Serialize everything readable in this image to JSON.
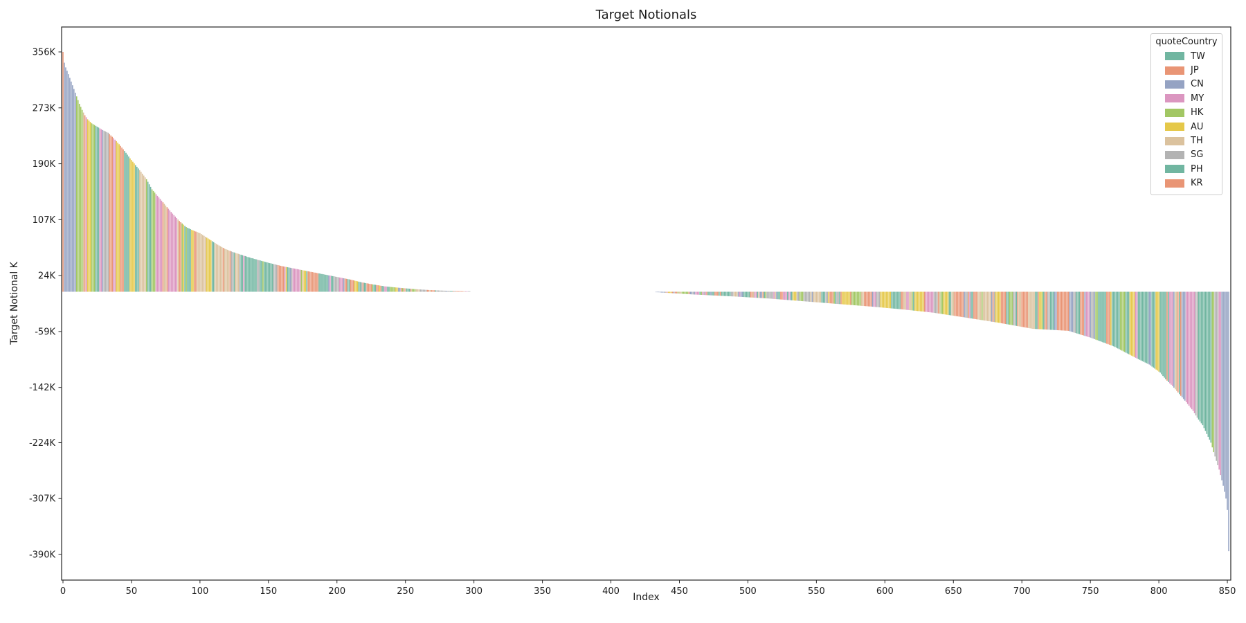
{
  "chart_data": {
    "type": "bar",
    "title": "Target Notionals",
    "xlabel": "Index",
    "ylabel": "Target Notional K",
    "units": "K (thousands)",
    "sorted": "descending by value",
    "n_bars": 852,
    "xlim": [
      -1,
      852.5
    ],
    "ylim": [
      -428,
      393
    ],
    "x_ticks": [
      0,
      50,
      100,
      150,
      200,
      250,
      300,
      350,
      400,
      450,
      500,
      550,
      600,
      650,
      700,
      750,
      800,
      850
    ],
    "y_ticks": [
      {
        "label": "356K",
        "value": 356
      },
      {
        "label": "273K",
        "value": 273
      },
      {
        "label": "190K",
        "value": 190
      },
      {
        "label": "107K",
        "value": 107
      },
      {
        "label": "24K",
        "value": 24
      },
      {
        "label": "-59K",
        "value": -59
      },
      {
        "label": "-142K",
        "value": -142
      },
      {
        "label": "-224K",
        "value": -224
      },
      {
        "label": "-307K",
        "value": -307
      },
      {
        "label": "-390K",
        "value": -390
      }
    ],
    "legend": {
      "title": "quoteCountry",
      "position": "upper right",
      "entries": [
        {
          "label": "TW",
          "color": "#71b6a1"
        },
        {
          "label": "JP",
          "color": "#e99575"
        },
        {
          "label": "CN",
          "color": "#95a3c3"
        },
        {
          "label": "MY",
          "color": "#db96c0"
        },
        {
          "label": "HK",
          "color": "#a2c764"
        },
        {
          "label": "AU",
          "color": "#e5c849"
        },
        {
          "label": "TH",
          "color": "#dbc29e"
        },
        {
          "label": "SG",
          "color": "#b3b3b3"
        },
        {
          "label": "PH",
          "color": "#71b6a1"
        },
        {
          "label": "KR",
          "color": "#e99575"
        }
      ]
    },
    "palette": {
      "TW": "#71b6a1",
      "JP": "#e99575",
      "CN": "#95a3c3",
      "MY": "#db96c0",
      "HK": "#a2c764",
      "AU": "#e5c849",
      "TH": "#dbc29e",
      "SG": "#b3b3b3",
      "PH": "#71b6a1",
      "KR": "#e99575"
    },
    "zero_gap": [
      298,
      432
    ],
    "envelope": [
      [
        0,
        356
      ],
      [
        1,
        340
      ],
      [
        2,
        333
      ],
      [
        4,
        323
      ],
      [
        6,
        312
      ],
      [
        8,
        301
      ],
      [
        10,
        290
      ],
      [
        12,
        279
      ],
      [
        14,
        270
      ],
      [
        16,
        262
      ],
      [
        18,
        256
      ],
      [
        21,
        250
      ],
      [
        25,
        245
      ],
      [
        29,
        240
      ],
      [
        33,
        236
      ],
      [
        37,
        228
      ],
      [
        41,
        219
      ],
      [
        45,
        209
      ],
      [
        49,
        198
      ],
      [
        53,
        188
      ],
      [
        57,
        178
      ],
      [
        61,
        167
      ],
      [
        65,
        152
      ],
      [
        70,
        140
      ],
      [
        75,
        128
      ],
      [
        80,
        116
      ],
      [
        85,
        105
      ],
      [
        90,
        96
      ],
      [
        95,
        91
      ],
      [
        100,
        87
      ],
      [
        106,
        79
      ],
      [
        112,
        71
      ],
      [
        118,
        64
      ],
      [
        124,
        59
      ],
      [
        130,
        55
      ],
      [
        136,
        51
      ],
      [
        143,
        47
      ],
      [
        150,
        43
      ],
      [
        160,
        38
      ],
      [
        170,
        34
      ],
      [
        180,
        30
      ],
      [
        190,
        26
      ],
      [
        200,
        22
      ],
      [
        210,
        18
      ],
      [
        218,
        14
      ],
      [
        226,
        11
      ],
      [
        235,
        8
      ],
      [
        245,
        6
      ],
      [
        256,
        4
      ],
      [
        268,
        2.5
      ],
      [
        282,
        1.3
      ],
      [
        296,
        0.6
      ],
      [
        298,
        0
      ],
      [
        432,
        0
      ],
      [
        436,
        -1
      ],
      [
        460,
        -4
      ],
      [
        490,
        -7
      ],
      [
        515,
        -10
      ],
      [
        540,
        -14
      ],
      [
        565,
        -18
      ],
      [
        590,
        -22
      ],
      [
        612,
        -26
      ],
      [
        635,
        -31
      ],
      [
        658,
        -38
      ],
      [
        683,
        -46
      ],
      [
        708,
        -55
      ],
      [
        734,
        -58
      ],
      [
        750,
        -68
      ],
      [
        767,
        -81
      ],
      [
        784,
        -99
      ],
      [
        793,
        -108
      ],
      [
        801,
        -120
      ],
      [
        805,
        -130
      ],
      [
        810,
        -140
      ],
      [
        815,
        -152
      ],
      [
        820,
        -164
      ],
      [
        825,
        -177
      ],
      [
        828,
        -187
      ],
      [
        832,
        -198
      ],
      [
        835,
        -211
      ],
      [
        838,
        -224
      ],
      [
        840,
        -238
      ],
      [
        842,
        -251
      ],
      [
        844,
        -264
      ],
      [
        846,
        -280
      ],
      [
        847,
        -288
      ],
      [
        848,
        -297
      ],
      [
        849,
        -307
      ],
      [
        850,
        -324
      ],
      [
        851,
        -385
      ]
    ],
    "color_seed": 11,
    "color_overrides": [
      {
        "from": 0,
        "to": 0,
        "country": "JP"
      },
      {
        "from": 1,
        "to": 9,
        "country": "CN"
      },
      {
        "from": 846,
        "to": 851,
        "country": "CN"
      }
    ]
  },
  "frame": {
    "background": "#ffffff",
    "spine_color": "#262626",
    "text_color": "#1c1c1c",
    "legend_border": "#cccccc"
  }
}
